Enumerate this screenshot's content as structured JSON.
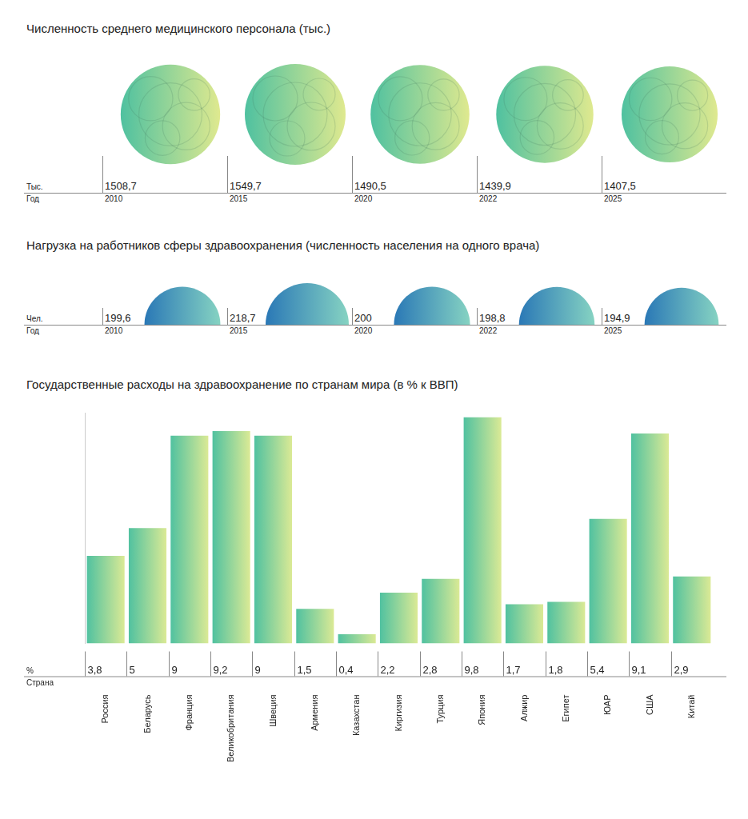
{
  "chart_data": [
    {
      "type": "circles",
      "title": "Численность среднего медицинского персонала (тыс.)",
      "categories": [
        "2010",
        "2015",
        "2020",
        "2022",
        "2025"
      ],
      "values": [
        1508.7,
        1549.7,
        1490.5,
        1439.9,
        1407.5
      ],
      "value_labels": [
        "1508,7",
        "1549,7",
        "1490,5",
        "1439,9",
        "1407,5"
      ],
      "ylabel": "Тыс.",
      "xlabel": "Год",
      "data_labels": true,
      "color": "#4fc1a0"
    },
    {
      "type": "semicircles",
      "title": "Нагрузка на работников сферы здравоохранения (численность населения на одного врача)",
      "categories": [
        "2010",
        "2015",
        "2020",
        "2022",
        "2025"
      ],
      "values": [
        199.6,
        218.7,
        200,
        198.8,
        194.9
      ],
      "value_labels": [
        "199,6",
        "218,7",
        "200",
        "198,8",
        "194,9"
      ],
      "ylabel": "Чел.",
      "xlabel": "Год",
      "data_labels": true,
      "color": "#2a78b6"
    },
    {
      "type": "bar",
      "title": "Государственные расходы на здравоохранение по странам мира (в % к ВВП)",
      "categories": [
        "Россия",
        "Беларусь",
        "Франция",
        "Великобритания",
        "Швеция",
        "Армения",
        "Казахстан",
        "Киргизия",
        "Турция",
        "Япония",
        "Алжир",
        "Египет",
        "ЮАР",
        "США",
        "Китай"
      ],
      "values": [
        3.8,
        5,
        9,
        9.2,
        9,
        1.5,
        0.4,
        2.2,
        2.8,
        9.8,
        1.7,
        1.8,
        5.4,
        9.1,
        2.9
      ],
      "value_labels": [
        "3,8",
        "5",
        "9",
        "9,2",
        "9",
        "1,5",
        "0,4",
        "2,2",
        "2,8",
        "9,8",
        "1,7",
        "1,8",
        "5,4",
        "9,1",
        "2,9"
      ],
      "ylabel": "%",
      "xlabel": "Страна",
      "ylim": [
        0,
        10
      ],
      "yticks": [],
      "tick_labels": "x",
      "data_labels": true,
      "grid": false,
      "color": "#4fc1a0"
    }
  ]
}
